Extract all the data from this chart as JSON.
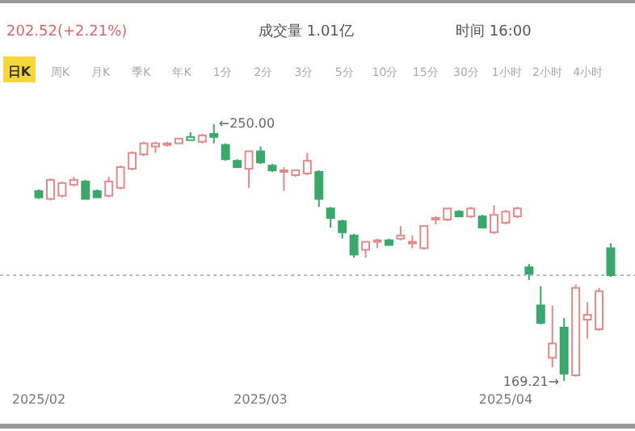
{
  "chart_data": {
    "type": "candlestick",
    "categories": [
      "2025/02",
      null,
      null,
      null,
      null,
      null,
      null,
      null,
      null,
      null,
      null,
      null,
      null,
      null,
      null,
      null,
      null,
      null,
      null,
      "2025/03",
      null,
      null,
      null,
      null,
      null,
      null,
      null,
      null,
      null,
      null,
      null,
      null,
      null,
      null,
      null,
      null,
      null,
      null,
      null,
      null,
      "2025/04",
      null,
      null,
      null,
      null,
      null,
      null,
      null,
      null,
      null
    ],
    "ohlc": [
      [
        229,
        229.5,
        226.5,
        227
      ],
      [
        226.5,
        233,
        226,
        232.5
      ],
      [
        227.5,
        232,
        227,
        231.5
      ],
      [
        231,
        233.5,
        230.5,
        232.5
      ],
      [
        232,
        232.5,
        226.5,
        226.5
      ],
      [
        229,
        229.5,
        227,
        227
      ],
      [
        227.5,
        233.5,
        227,
        232
      ],
      [
        230,
        237,
        229.5,
        236.5
      ],
      [
        236,
        241.5,
        235.5,
        241
      ],
      [
        240.5,
        244.5,
        240,
        244
      ],
      [
        243,
        244.5,
        241,
        244
      ],
      [
        243.5,
        244.5,
        243,
        244
      ],
      [
        244,
        245.5,
        244,
        245.5
      ],
      [
        245,
        247.5,
        245,
        246
      ],
      [
        244.5,
        247,
        244,
        246.5
      ],
      [
        247,
        250,
        244,
        246
      ],
      [
        243.5,
        244,
        238.5,
        239
      ],
      [
        238.5,
        239,
        236.5,
        236.5
      ],
      [
        236,
        241.5,
        230,
        241.5
      ],
      [
        241.5,
        243,
        237.5,
        238
      ],
      [
        237,
        237.5,
        235,
        235.5
      ],
      [
        235.5,
        236.5,
        229,
        235.5
      ],
      [
        234,
        235.5,
        233.5,
        235.5
      ],
      [
        234.5,
        241,
        234,
        238.5
      ],
      [
        235,
        235.5,
        224,
        226.5
      ],
      [
        223.5,
        224,
        217.5,
        220.5
      ],
      [
        219.5,
        220,
        214,
        216
      ],
      [
        215,
        215.5,
        208,
        209
      ],
      [
        210.5,
        213,
        208,
        213
      ],
      [
        213,
        214,
        211,
        213.5
      ],
      [
        213.5,
        214,
        212,
        212
      ],
      [
        214,
        218,
        213.5,
        215
      ],
      [
        213,
        215,
        211,
        213
      ],
      [
        211,
        218,
        210.5,
        218
      ],
      [
        220,
        221,
        218.5,
        220.5
      ],
      [
        220,
        223.5,
        219.5,
        223.5
      ],
      [
        222.5,
        223,
        221,
        221
      ],
      [
        221,
        224,
        220.5,
        223.5
      ],
      [
        221,
        221.5,
        217.5,
        217.5
      ],
      [
        216,
        224.5,
        215.5,
        221.5
      ],
      [
        219,
        223,
        218.5,
        222.5
      ],
      [
        221,
        224,
        220.5,
        223.5
      ],
      [
        205,
        206,
        201,
        203
      ],
      [
        193,
        199,
        187,
        187.5
      ],
      [
        176.5,
        193,
        173.5,
        181
      ],
      [
        186,
        189,
        169.21,
        171.5
      ],
      [
        171,
        199.5,
        170.5,
        198.5
      ],
      [
        188.5,
        194,
        182.5,
        190
      ],
      [
        185.5,
        198.5,
        185,
        197.5
      ],
      [
        211,
        212.5,
        202,
        202.52
      ]
    ],
    "colors": [
      "#3ba86b",
      "#e28a8a",
      "#e28a8a",
      "#e28a8a",
      "#3ba86b",
      "#3ba86b",
      "#e28a8a",
      "#e28a8a",
      "#e28a8a",
      "#e28a8a",
      "#e28a8a",
      "#e28a8a",
      "#e28a8a",
      "#3ba86b",
      "#e28a8a",
      "#3ba86b",
      "#3ba86b",
      "#3ba86b",
      "#e28a8a",
      "#3ba86b",
      "#3ba86b",
      "#e28a8a",
      "#e28a8a",
      "#e28a8a",
      "#3ba86b",
      "#3ba86b",
      "#3ba86b",
      "#3ba86b",
      "#e28a8a",
      "#e28a8a",
      "#3ba86b",
      "#e28a8a",
      "#e28a8a",
      "#e28a8a",
      "#e28a8a",
      "#e28a8a",
      "#3ba86b",
      "#e28a8a",
      "#3ba86b",
      "#e28a8a",
      "#e28a8a",
      "#e28a8a",
      "#3ba86b",
      "#3ba86b",
      "#e28a8a",
      "#3ba86b",
      "#e28a8a",
      "#e28a8a",
      "#e28a8a",
      "#3ba86b"
    ],
    "ref_lines": [
      {
        "axis": "y",
        "value": 202.52,
        "color": "#bbbbbb",
        "line_style": "dotted"
      }
    ],
    "annotations": [
      "202.52(+2.21%)",
      "成交量 1.01亿",
      "时间 16:00",
      "日K",
      "周K",
      "月K",
      "季K",
      "年K",
      "1分",
      "2分",
      "3分",
      "5分",
      "10分",
      "15分",
      "30分",
      "1小时",
      "2小时",
      "4小时",
      "←250.00",
      "169.21→"
    ]
  }
}
